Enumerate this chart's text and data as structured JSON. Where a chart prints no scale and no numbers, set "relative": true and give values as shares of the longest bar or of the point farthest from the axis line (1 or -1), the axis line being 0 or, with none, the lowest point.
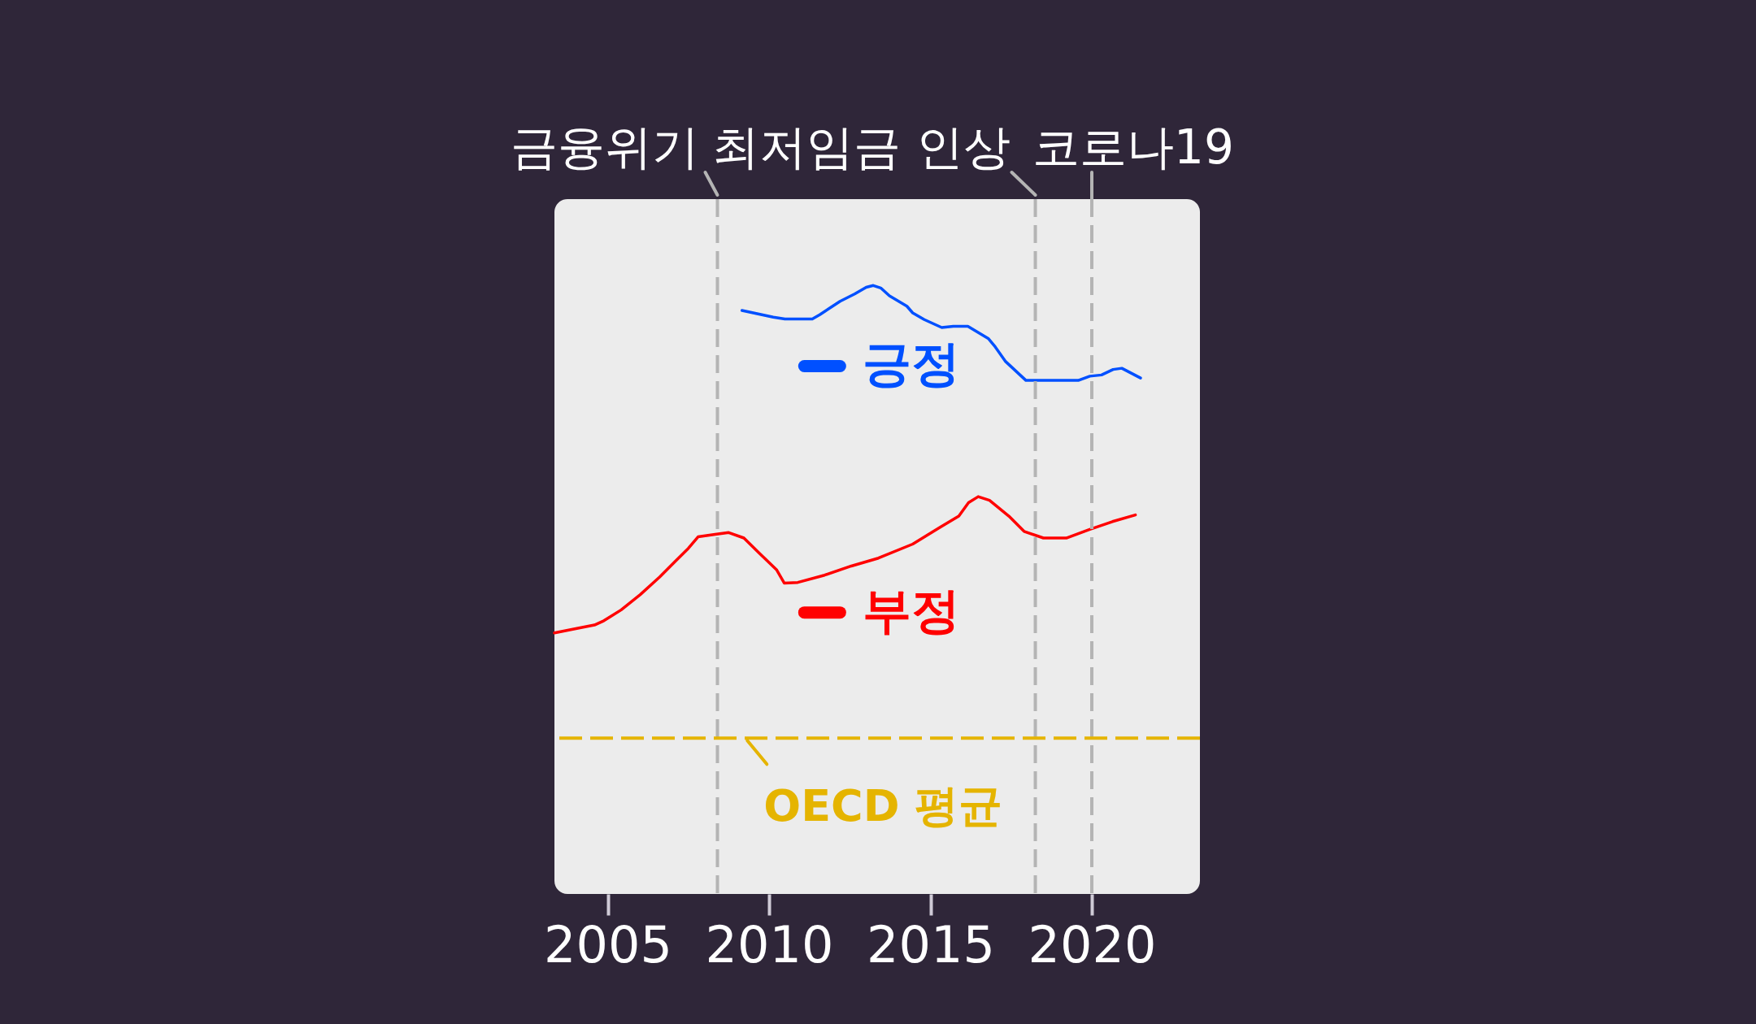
{
  "chart_data": {
    "type": "line",
    "relative": true,
    "xlim": [
      2003.35,
      2023.35
    ],
    "xticks": [
      2005,
      2010,
      2015,
      2020
    ],
    "tick_labels": "x",
    "legend": "center",
    "series": [
      {
        "name": "긍정",
        "color": "#0050ff",
        "x": [
          2009.16,
          2010.13,
          2010.49,
          2011.34,
          2011.57,
          2012.2,
          2012.65,
          2013.01,
          2013.23,
          2013.46,
          2013.73,
          2014.27,
          2014.45,
          2014.81,
          2015.35,
          2015.71,
          2016.16,
          2016.79,
          2017.01,
          2017.33,
          2017.96,
          2019.58,
          2019.94,
          2020.3,
          2020.66,
          2020.93,
          2021.51
        ],
        "values": [
          0.959,
          0.948,
          0.945,
          0.945,
          0.952,
          0.974,
          0.986,
          0.997,
          1,
          0.996,
          0.983,
          0.966,
          0.955,
          0.944,
          0.931,
          0.933,
          0.933,
          0.913,
          0.899,
          0.875,
          0.844,
          0.844,
          0.851,
          0.853,
          0.862,
          0.864,
          0.848
        ]
      },
      {
        "name": "부정",
        "color": "#ff0000",
        "x": [
          2003.35,
          2004.11,
          2004.59,
          2004.88,
          2005.42,
          2006.01,
          2006.61,
          2007.08,
          2007.5,
          2007.8,
          2008.33,
          2008.75,
          2009.22,
          2009.7,
          2010.23,
          2010.47,
          2010.89,
          2011.72,
          2012.55,
          2013.39,
          2014.45,
          2015.28,
          2015.88,
          2016.18,
          2016.48,
          2016.83,
          2017.43,
          2017.9,
          2018.5,
          2019.21,
          2019.92,
          2020.64,
          2021.35
        ],
        "values": [
          0.429,
          0.437,
          0.442,
          0.449,
          0.467,
          0.492,
          0.521,
          0.546,
          0.568,
          0.587,
          0.591,
          0.594,
          0.585,
          0.56,
          0.533,
          0.511,
          0.512,
          0.524,
          0.539,
          0.552,
          0.575,
          0.602,
          0.621,
          0.643,
          0.653,
          0.647,
          0.621,
          0.596,
          0.585,
          0.585,
          0.599,
          0.612,
          0.623
        ]
      }
    ],
    "ref_lines": [
      {
        "axis": "x",
        "value": 2008.4,
        "label": "금융위기",
        "color": "#b4b4b4",
        "line_style": "dashed"
      },
      {
        "axis": "x",
        "value": 2018.25,
        "label": "최저임금 인상",
        "color": "#b4b4b4",
        "line_style": "dashed"
      },
      {
        "axis": "x",
        "value": 2020,
        "label": "코로나19",
        "color": "#b4b4b4",
        "line_style": "dashed"
      },
      {
        "axis": "y",
        "value": 0.256,
        "label": "OECD 평균",
        "color": "#e5b400",
        "line_style": "dashed"
      }
    ]
  }
}
